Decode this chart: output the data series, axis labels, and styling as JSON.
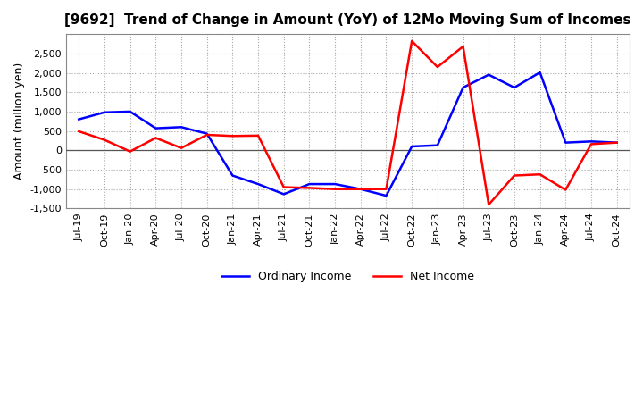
{
  "title": "[9692]  Trend of Change in Amount (YoY) of 12Mo Moving Sum of Incomes",
  "ylabel": "Amount (million yen)",
  "x_labels": [
    "Jul-19",
    "Oct-19",
    "Jan-20",
    "Apr-20",
    "Jul-20",
    "Oct-20",
    "Jan-21",
    "Apr-21",
    "Jul-21",
    "Oct-21",
    "Jan-22",
    "Apr-22",
    "Jul-22",
    "Oct-22",
    "Jan-23",
    "Apr-23",
    "Jul-23",
    "Oct-23",
    "Jan-24",
    "Apr-24",
    "Jul-24",
    "Oct-24"
  ],
  "ordinary_income": [
    800,
    980,
    1000,
    570,
    600,
    430,
    -650,
    -870,
    -1130,
    -870,
    -870,
    -1000,
    -1170,
    100,
    130,
    1620,
    1950,
    1620,
    2010,
    200,
    230,
    200
  ],
  "net_income": [
    490,
    270,
    -30,
    320,
    60,
    400,
    370,
    380,
    -950,
    -970,
    -1000,
    -1000,
    -1000,
    2820,
    2150,
    2680,
    -1400,
    -650,
    -620,
    -1020,
    160,
    200
  ],
  "ordinary_income_color": "#0000FF",
  "net_income_color": "#FF0000",
  "ylim": [
    -1500,
    3000
  ],
  "yticks": [
    -1500,
    -1000,
    -500,
    0,
    500,
    1000,
    1500,
    2000,
    2500
  ],
  "plot_bg_color": "#FFFFFF",
  "fig_bg_color": "#FFFFFF",
  "grid_color": "#AAAAAA",
  "grid_style": ":",
  "legend_labels": [
    "Ordinary Income",
    "Net Income"
  ],
  "title_fontsize": 11,
  "axis_fontsize": 9,
  "tick_fontsize": 8,
  "line_width": 1.8,
  "zero_line_color": "#555555",
  "spine_color": "#888888"
}
